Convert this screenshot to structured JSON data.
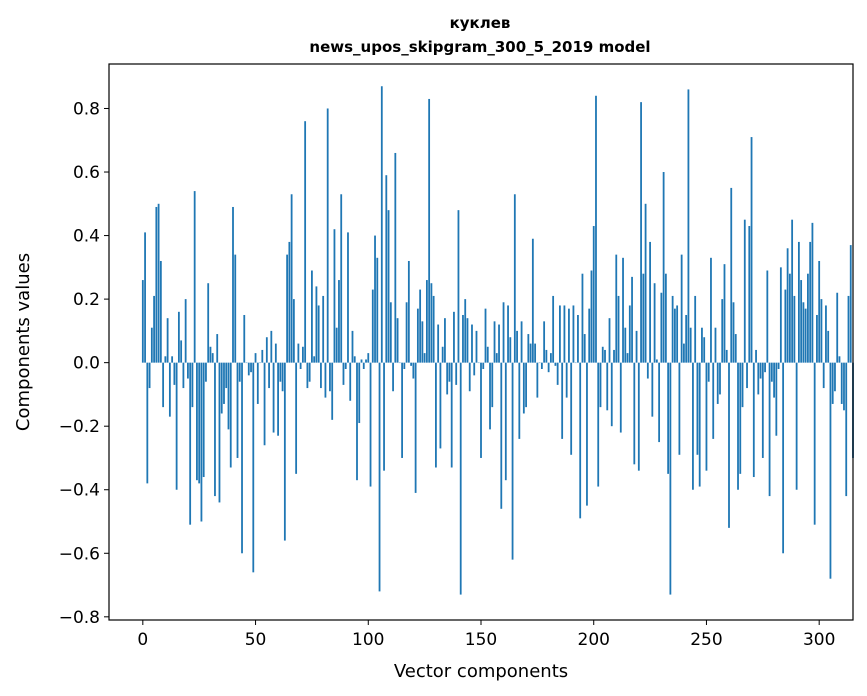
{
  "chart_data": {
    "type": "bar",
    "title": "куклев",
    "subtitle": "news_upos_skipgram_300_5_2019 model",
    "xlabel": "Vector components",
    "ylabel": "Components values",
    "x_ticks": [
      0,
      50,
      100,
      150,
      200,
      250,
      300
    ],
    "y_ticks": [
      -0.8,
      -0.6,
      -0.4,
      -0.2,
      0.0,
      0.2,
      0.4,
      0.6,
      0.8
    ],
    "x_tick_labels": [
      "0",
      "50",
      "100",
      "150",
      "200",
      "250",
      "300"
    ],
    "y_tick_labels": [
      "−0.8",
      "−0.6",
      "−0.4",
      "−0.2",
      "0.0",
      "0.2",
      "0.4",
      "0.6",
      "0.8"
    ],
    "xlim": [
      -15,
      315
    ],
    "ylim": [
      -0.81,
      0.94
    ],
    "bar_color": "#1f77b4",
    "values": [
      0.26,
      0.41,
      -0.38,
      -0.08,
      0.11,
      0.21,
      0.49,
      0.5,
      0.32,
      -0.14,
      0.02,
      0.14,
      -0.17,
      0.02,
      -0.07,
      -0.4,
      0.16,
      0.07,
      -0.08,
      0.2,
      -0.05,
      -0.51,
      -0.14,
      0.54,
      -0.37,
      -0.38,
      -0.5,
      -0.36,
      -0.06,
      0.25,
      0.05,
      0.03,
      -0.42,
      0.09,
      -0.44,
      -0.16,
      -0.13,
      -0.08,
      -0.21,
      -0.33,
      0.49,
      0.34,
      -0.3,
      -0.06,
      -0.6,
      0.15,
      0.0,
      -0.04,
      -0.03,
      -0.66,
      0.03,
      -0.13,
      0.0,
      0.04,
      -0.26,
      0.08,
      -0.08,
      0.1,
      -0.22,
      0.06,
      -0.23,
      -0.06,
      -0.09,
      -0.56,
      0.34,
      0.38,
      0.53,
      0.2,
      -0.35,
      0.06,
      -0.02,
      0.05,
      0.76,
      -0.08,
      -0.06,
      0.29,
      0.02,
      0.24,
      0.18,
      -0.08,
      0.21,
      -0.11,
      0.8,
      -0.09,
      -0.18,
      0.42,
      0.11,
      0.26,
      0.53,
      -0.07,
      -0.02,
      0.41,
      -0.12,
      0.1,
      0.02,
      -0.37,
      -0.19,
      0.01,
      -0.02,
      0.01,
      0.03,
      -0.39,
      0.23,
      0.4,
      0.33,
      -0.72,
      0.87,
      -0.34,
      0.59,
      0.48,
      0.19,
      -0.09,
      0.66,
      0.14,
      0.0,
      -0.3,
      -0.02,
      0.19,
      0.32,
      -0.01,
      -0.05,
      -0.41,
      0.17,
      0.23,
      0.13,
      0.03,
      0.26,
      0.83,
      0.25,
      0.21,
      -0.33,
      0.12,
      -0.27,
      0.05,
      0.14,
      -0.1,
      -0.06,
      -0.33,
      0.16,
      -0.07,
      0.48,
      -0.73,
      0.15,
      0.2,
      0.14,
      -0.09,
      0.12,
      -0.04,
      0.1,
      0.0,
      -0.3,
      -0.02,
      0.17,
      0.05,
      -0.21,
      -0.14,
      0.13,
      0.03,
      0.12,
      -0.46,
      0.19,
      -0.37,
      0.18,
      0.08,
      -0.62,
      0.53,
      0.1,
      -0.24,
      0.13,
      -0.16,
      -0.14,
      0.09,
      0.06,
      0.39,
      0.06,
      -0.11,
      0.0,
      -0.02,
      0.13,
      0.04,
      -0.03,
      0.03,
      0.21,
      -0.01,
      -0.07,
      0.18,
      -0.24,
      0.18,
      -0.11,
      0.17,
      -0.29,
      0.18,
      0.0,
      0.15,
      -0.49,
      0.28,
      0.09,
      -0.45,
      0.17,
      0.29,
      0.43,
      0.84,
      -0.39,
      -0.14,
      0.05,
      0.04,
      -0.15,
      0.14,
      -0.2,
      0.04,
      0.34,
      0.21,
      -0.22,
      0.33,
      0.11,
      0.03,
      0.18,
      0.27,
      -0.32,
      0.1,
      -0.34,
      0.82,
      0.28,
      0.5,
      -0.05,
      0.38,
      -0.17,
      0.25,
      0.01,
      -0.25,
      0.22,
      0.6,
      0.28,
      -0.35,
      -0.73,
      0.21,
      0.17,
      0.18,
      -0.29,
      0.34,
      0.06,
      0.15,
      0.86,
      0.11,
      -0.4,
      0.21,
      -0.29,
      -0.39,
      0.11,
      0.08,
      -0.34,
      -0.06,
      0.33,
      -0.24,
      0.11,
      -0.13,
      -0.1,
      0.2,
      0.31,
      0.04,
      -0.52,
      0.55,
      0.19,
      0.09,
      -0.4,
      -0.35,
      -0.14,
      0.45,
      -0.08,
      0.43,
      0.71,
      -0.36,
      0.04,
      -0.1,
      -0.05,
      -0.3,
      -0.03,
      0.29,
      -0.42,
      -0.06,
      -0.11,
      -0.23,
      -0.02,
      0.3,
      -0.6,
      0.23,
      0.36,
      0.28,
      0.45,
      0.21,
      -0.4,
      0.38,
      0.26,
      0.19,
      0.17,
      0.28,
      0.38,
      0.44,
      -0.51,
      0.15,
      0.32,
      0.2,
      -0.08,
      0.18,
      0.1,
      -0.68,
      -0.13,
      -0.09,
      0.22,
      0.02,
      -0.13,
      -0.15,
      -0.42,
      0.21,
      0.37,
      -0.3
    ]
  }
}
